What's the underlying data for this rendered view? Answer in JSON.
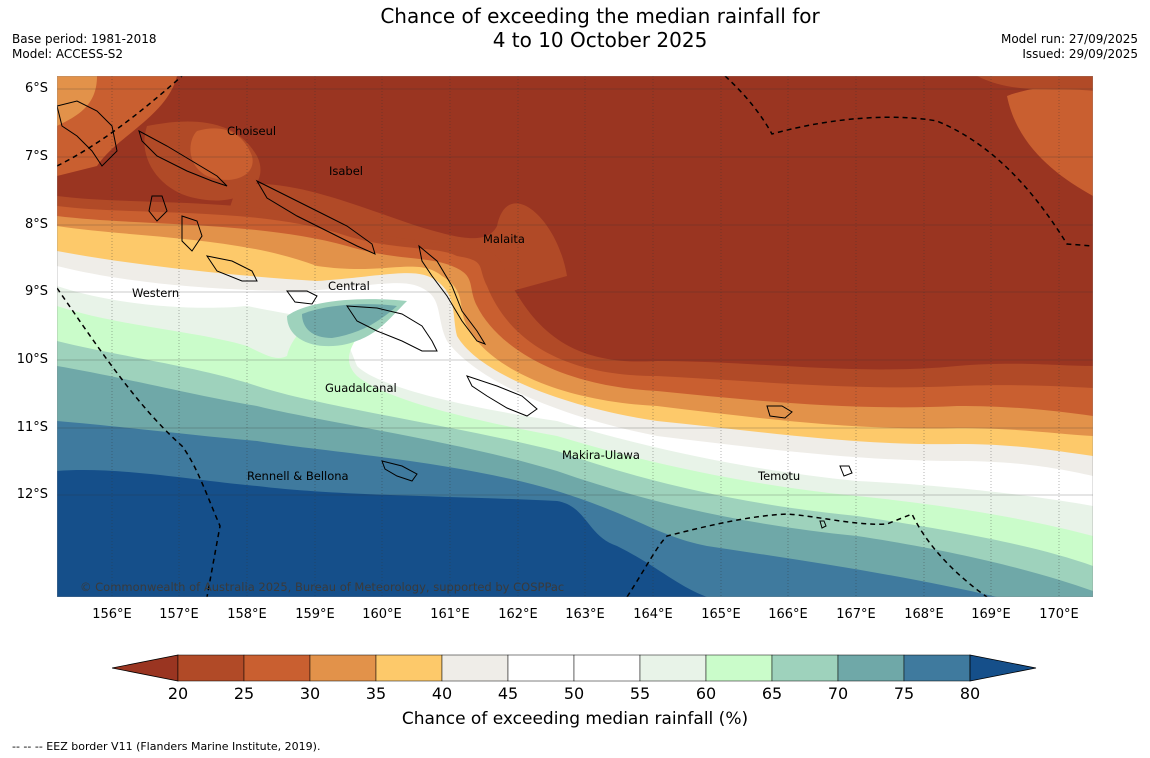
{
  "title": {
    "line1": "Chance of exceeding the median rainfall for",
    "line2": "4 to 10 October 2025"
  },
  "meta_left": {
    "base_period": "Base period: 1981-2018",
    "model": "Model: ACCESS-S2"
  },
  "meta_right": {
    "model_run": "Model run: 27/09/2025",
    "issued": "Issued: 29/09/2025"
  },
  "map": {
    "lat_labels": [
      "6°S",
      "7°S",
      "8°S",
      "9°S",
      "10°S",
      "11°S",
      "12°S"
    ],
    "lon_labels": [
      "156°E",
      "157°E",
      "158°E",
      "159°E",
      "160°E",
      "161°E",
      "162°E",
      "163°E",
      "164°E",
      "165°E",
      "166°E",
      "167°E",
      "168°E",
      "169°E",
      "170°E"
    ],
    "places": [
      {
        "name": "Choiseul"
      },
      {
        "name": "Isabel"
      },
      {
        "name": "Malaita"
      },
      {
        "name": "Western"
      },
      {
        "name": "Central"
      },
      {
        "name": "Guadalcanal"
      },
      {
        "name": "Makira-Ulawa"
      },
      {
        "name": "Rennell & Bellona"
      },
      {
        "name": "Temotu"
      }
    ],
    "copyright": "© Commonwealth of Australia 2025, Bureau of Meteorology, supported by COSPPac"
  },
  "colorbar": {
    "title": "Chance of exceeding median rainfall (%)",
    "ticks": [
      "20",
      "25",
      "30",
      "35",
      "40",
      "45",
      "50",
      "55",
      "60",
      "65",
      "70",
      "75",
      "80"
    ],
    "colors": [
      "#9a3521",
      "#b14a27",
      "#c95f30",
      "#e2924a",
      "#fdc96a",
      "#efede8",
      "#ffffff",
      "#ffffff",
      "#e8f3e8",
      "#cafcca",
      "#9ed2bc",
      "#6fa8a8",
      "#3f7a9e",
      "#154f8a"
    ]
  },
  "footer": "--  --  -- EEZ border V11 (Flanders Marine Institute, 2019)."
}
